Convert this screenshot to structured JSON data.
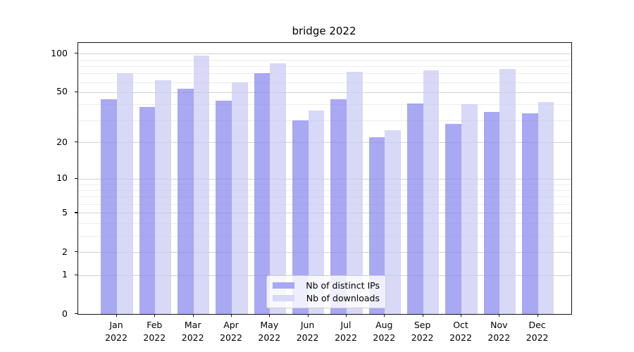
{
  "figure": {
    "title": "bridge 2022"
  },
  "chart_data": {
    "type": "bar",
    "title": "bridge 2022",
    "categories": [
      "Jan",
      "Feb",
      "Mar",
      "Apr",
      "May",
      "Jun",
      "Jul",
      "Aug",
      "Sep",
      "Oct",
      "Nov",
      "Dec"
    ],
    "category_year": "2022",
    "series": [
      {
        "name": "Nb of distinct IPs",
        "color": "#8383ee",
        "alpha": 0.7,
        "legend_color": "#a8a8f3",
        "values": [
          44,
          38,
          53,
          43,
          70,
          30,
          44,
          22,
          41,
          28,
          35,
          34
        ]
      },
      {
        "name": "Nb of downloads",
        "color": "#c7c7f4",
        "alpha": 0.7,
        "legend_color": "#d8d8f7",
        "values": [
          70,
          62,
          96,
          60,
          84,
          36,
          72,
          25,
          74,
          40,
          76,
          42
        ]
      }
    ],
    "xlabel": "",
    "ylabel": "",
    "yscale": "log1p",
    "ylim": [
      0,
      121
    ],
    "yticks": [
      100,
      50,
      20,
      10,
      5,
      2,
      1,
      0
    ],
    "minor_gridlines": [
      3,
      4,
      6,
      7,
      8,
      9,
      30,
      40,
      60,
      70,
      80,
      90
    ],
    "grid": true,
    "legend_position": "lower center",
    "colors": {
      "background": "#ffffff",
      "spine": "#141414",
      "grid_major": "#d2d2d2",
      "grid_minor": "#ececec"
    }
  }
}
